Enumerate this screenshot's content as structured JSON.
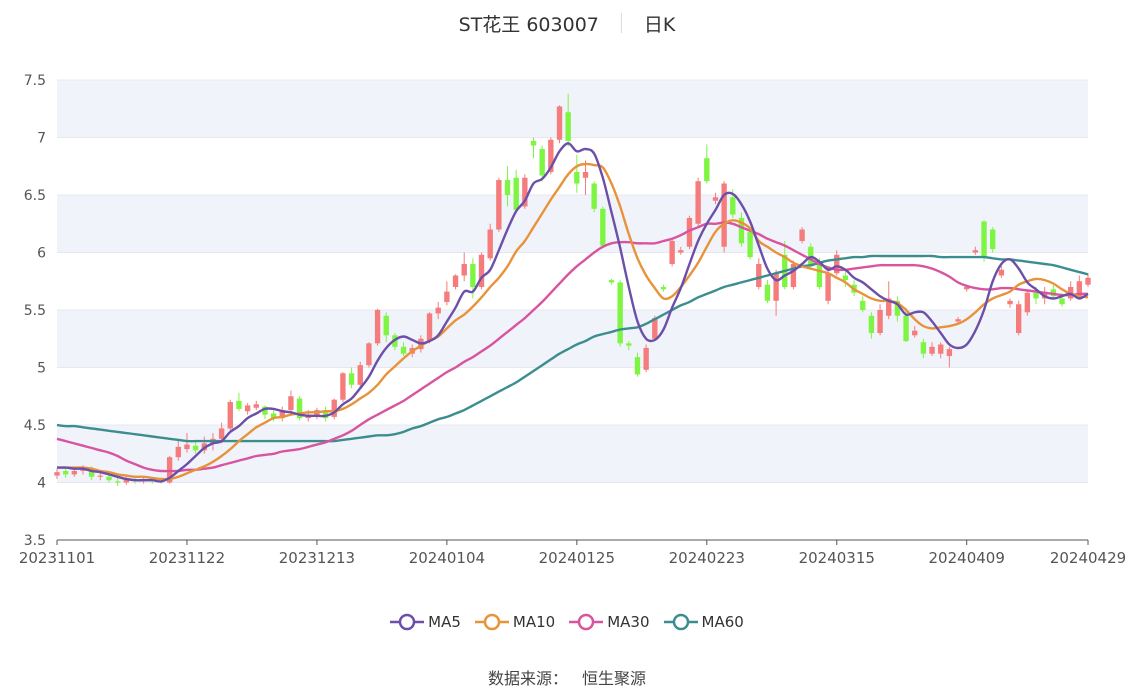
{
  "header": {
    "stock": "ST花王 603007",
    "period": "日K"
  },
  "footer": {
    "source_label": "数据来源：",
    "source_value": "恒生聚源"
  },
  "colors": {
    "up": "#f47c7c",
    "down": "#7ef542",
    "MA5": "#6b4fa8",
    "MA10": "#e8933a",
    "MA30": "#d8549f",
    "MA60": "#3c8d8f",
    "band": "#f1f3fa",
    "grid": "#e6e8f0"
  },
  "chart_data": {
    "type": "candlestick",
    "title": "ST花王 603007 日K",
    "ylim": [
      3.5,
      7.5
    ],
    "y_ticks": [
      "3.5",
      "4",
      "4.5",
      "5",
      "5.5",
      "6",
      "6.5",
      "7",
      "7.5"
    ],
    "x_ticks": [
      {
        "label": "20231101",
        "index": 0
      },
      {
        "label": "20231122",
        "index": 15
      },
      {
        "label": "20231213",
        "index": 30
      },
      {
        "label": "20240104",
        "index": 45
      },
      {
        "label": "20240125",
        "index": 60
      },
      {
        "label": "20240223",
        "index": 75
      },
      {
        "label": "20240315",
        "index": 90
      },
      {
        "label": "20240409",
        "index": 105
      },
      {
        "label": "20240429",
        "index": 119
      }
    ],
    "ohlc": [
      [
        4.06,
        4.09,
        4.03,
        4.12
      ],
      [
        4.1,
        4.07,
        4.04,
        4.13
      ],
      [
        4.07,
        4.1,
        4.05,
        4.12
      ],
      [
        4.1,
        4.12,
        4.07,
        4.15
      ],
      [
        4.12,
        4.05,
        4.02,
        4.14
      ],
      [
        4.05,
        4.06,
        4.02,
        4.08
      ],
      [
        4.05,
        4.02,
        4.0,
        4.07
      ],
      [
        4.01,
        4.0,
        3.97,
        4.05
      ],
      [
        4.0,
        4.03,
        3.98,
        4.05
      ],
      [
        4.03,
        4.01,
        3.99,
        4.06
      ],
      [
        4.01,
        4.02,
        3.99,
        4.04
      ],
      [
        4.02,
        4.01,
        3.99,
        4.03
      ],
      [
        4.01,
        4.0,
        3.99,
        4.03
      ],
      [
        4.0,
        4.22,
        3.99,
        4.23
      ],
      [
        4.22,
        4.31,
        4.19,
        4.38
      ],
      [
        4.29,
        4.33,
        4.26,
        4.43
      ],
      [
        4.32,
        4.28,
        4.25,
        4.36
      ],
      [
        4.28,
        4.34,
        4.25,
        4.4
      ],
      [
        4.34,
        4.38,
        4.28,
        4.43
      ],
      [
        4.38,
        4.47,
        4.34,
        4.52
      ],
      [
        4.47,
        4.7,
        4.45,
        4.72
      ],
      [
        4.71,
        4.64,
        4.62,
        4.78
      ],
      [
        4.62,
        4.67,
        4.59,
        4.69
      ],
      [
        4.65,
        4.68,
        4.63,
        4.71
      ],
      [
        4.66,
        4.59,
        4.55,
        4.67
      ],
      [
        4.6,
        4.56,
        4.53,
        4.63
      ],
      [
        4.56,
        4.63,
        4.53,
        4.66
      ],
      [
        4.63,
        4.75,
        4.61,
        4.8
      ],
      [
        4.73,
        4.56,
        4.54,
        4.75
      ],
      [
        4.56,
        4.59,
        4.53,
        4.63
      ],
      [
        4.58,
        4.63,
        4.55,
        4.65
      ],
      [
        4.62,
        4.56,
        4.53,
        4.66
      ],
      [
        4.57,
        4.72,
        4.55,
        4.73
      ],
      [
        4.72,
        4.95,
        4.7,
        4.96
      ],
      [
        4.95,
        4.85,
        4.82,
        5.0
      ],
      [
        4.85,
        5.02,
        4.83,
        5.05
      ],
      [
        5.02,
        5.21,
        5.0,
        5.22
      ],
      [
        5.21,
        5.5,
        5.19,
        5.51
      ],
      [
        5.45,
        5.28,
        5.22,
        5.48
      ],
      [
        5.28,
        5.18,
        5.15,
        5.3
      ],
      [
        5.18,
        5.12,
        5.1,
        5.22
      ],
      [
        5.12,
        5.17,
        5.09,
        5.2
      ],
      [
        5.16,
        5.25,
        5.13,
        5.28
      ],
      [
        5.23,
        5.47,
        5.21,
        5.48
      ],
      [
        5.47,
        5.52,
        5.42,
        5.57
      ],
      [
        5.57,
        5.66,
        5.54,
        5.75
      ],
      [
        5.7,
        5.8,
        5.68,
        5.81
      ],
      [
        5.8,
        5.9,
        5.75,
        6.0
      ],
      [
        5.9,
        5.7,
        5.6,
        5.95
      ],
      [
        5.7,
        5.98,
        5.68,
        6.0
      ],
      [
        5.95,
        6.2,
        5.93,
        6.25
      ],
      [
        6.2,
        6.63,
        6.18,
        6.65
      ],
      [
        6.63,
        6.5,
        6.4,
        6.75
      ],
      [
        6.65,
        6.37,
        6.35,
        6.72
      ],
      [
        6.4,
        6.65,
        6.38,
        6.68
      ],
      [
        6.97,
        6.93,
        6.82,
        7.0
      ],
      [
        6.9,
        6.67,
        6.62,
        6.93
      ],
      [
        6.7,
        6.98,
        6.68,
        7.0
      ],
      [
        6.98,
        7.27,
        6.95,
        7.28
      ],
      [
        7.22,
        6.97,
        6.92,
        7.38
      ],
      [
        6.7,
        6.6,
        6.52,
        6.85
      ],
      [
        6.65,
        6.7,
        6.5,
        6.8
      ],
      [
        6.6,
        6.38,
        6.35,
        6.62
      ],
      [
        6.38,
        6.06,
        6.04,
        6.4
      ],
      [
        5.76,
        5.74,
        5.72,
        5.77
      ],
      [
        5.74,
        5.21,
        5.18,
        5.76
      ],
      [
        5.21,
        5.19,
        5.15,
        5.23
      ],
      [
        5.09,
        4.94,
        4.92,
        5.13
      ],
      [
        4.98,
        5.17,
        4.96,
        5.2
      ],
      [
        5.25,
        5.43,
        5.24,
        5.45
      ],
      [
        5.7,
        5.68,
        5.66,
        5.72
      ],
      [
        5.9,
        6.1,
        5.88,
        6.12
      ],
      [
        6.0,
        6.02,
        5.98,
        6.05
      ],
      [
        6.05,
        6.3,
        6.03,
        6.32
      ],
      [
        6.25,
        6.62,
        6.22,
        6.65
      ],
      [
        6.82,
        6.62,
        6.6,
        6.94
      ],
      [
        6.45,
        6.48,
        6.42,
        6.52
      ],
      [
        6.05,
        6.6,
        6.0,
        6.62
      ],
      [
        6.48,
        6.33,
        6.3,
        6.55
      ],
      [
        6.3,
        6.08,
        6.05,
        6.35
      ],
      [
        6.18,
        5.96,
        5.94,
        6.22
      ],
      [
        5.7,
        5.9,
        5.68,
        5.95
      ],
      [
        5.72,
        5.58,
        5.56,
        5.76
      ],
      [
        5.58,
        5.82,
        5.45,
        5.85
      ],
      [
        5.98,
        5.7,
        5.68,
        6.1
      ],
      [
        5.7,
        5.9,
        5.68,
        5.93
      ],
      [
        6.1,
        6.2,
        6.08,
        6.22
      ],
      [
        6.05,
        5.88,
        5.85,
        6.08
      ],
      [
        5.92,
        5.7,
        5.68,
        5.95
      ],
      [
        5.58,
        5.82,
        5.55,
        5.85
      ],
      [
        5.82,
        5.98,
        5.8,
        6.02
      ],
      [
        5.8,
        5.76,
        5.7,
        5.86
      ],
      [
        5.72,
        5.65,
        5.62,
        5.76
      ],
      [
        5.58,
        5.5,
        5.48,
        5.62
      ],
      [
        5.45,
        5.3,
        5.25,
        5.48
      ],
      [
        5.3,
        5.5,
        5.28,
        5.55
      ],
      [
        5.45,
        5.6,
        5.42,
        5.75
      ],
      [
        5.58,
        5.45,
        5.4,
        5.62
      ],
      [
        5.45,
        5.23,
        5.22,
        5.52
      ],
      [
        5.28,
        5.32,
        5.26,
        5.36
      ],
      [
        5.22,
        5.12,
        5.08,
        5.25
      ],
      [
        5.12,
        5.18,
        5.1,
        5.22
      ],
      [
        5.12,
        5.2,
        5.08,
        5.22
      ],
      [
        5.1,
        5.16,
        5.0,
        5.18
      ],
      [
        5.4,
        5.42,
        5.38,
        5.44
      ],
      [
        5.68,
        5.7,
        5.66,
        5.72
      ],
      [
        6.0,
        6.02,
        5.98,
        6.05
      ],
      [
        6.27,
        5.96,
        5.92,
        6.28
      ],
      [
        6.2,
        6.03,
        6.0,
        6.22
      ],
      [
        5.8,
        5.85,
        5.78,
        5.88
      ],
      [
        5.55,
        5.58,
        5.52,
        5.6
      ],
      [
        5.3,
        5.55,
        5.28,
        5.58
      ],
      [
        5.48,
        5.65,
        5.45,
        5.68
      ],
      [
        5.65,
        5.6,
        5.55,
        5.7
      ],
      [
        5.6,
        5.66,
        5.55,
        5.7
      ],
      [
        5.68,
        5.62,
        5.6,
        5.72
      ],
      [
        5.6,
        5.55,
        5.53,
        5.65
      ],
      [
        5.6,
        5.7,
        5.58,
        5.75
      ],
      [
        5.62,
        5.75,
        5.6,
        5.8
      ],
      [
        5.72,
        5.78,
        5.7,
        5.82
      ]
    ],
    "series": [
      {
        "name": "MA5",
        "values": [
          4.13,
          4.13,
          4.12,
          4.12,
          4.1,
          4.09,
          4.07,
          4.05,
          4.03,
          4.02,
          4.02,
          4.02,
          4.01,
          4.04,
          4.1,
          4.16,
          4.23,
          4.3,
          4.34,
          4.36,
          4.44,
          4.49,
          4.56,
          4.6,
          4.64,
          4.64,
          4.62,
          4.61,
          4.59,
          4.58,
          4.58,
          4.58,
          4.61,
          4.68,
          4.73,
          4.82,
          4.92,
          5.06,
          5.17,
          5.24,
          5.27,
          5.24,
          5.21,
          5.23,
          5.28,
          5.4,
          5.52,
          5.66,
          5.66,
          5.78,
          5.85,
          6.02,
          6.2,
          6.36,
          6.45,
          6.6,
          6.64,
          6.74,
          6.88,
          6.95,
          6.88,
          6.9,
          6.86,
          6.65,
          6.35,
          6.04,
          5.7,
          5.4,
          5.25,
          5.24,
          5.33,
          5.52,
          5.69,
          5.9,
          6.1,
          6.25,
          6.37,
          6.5,
          6.51,
          6.42,
          6.27,
          6.06,
          5.86,
          5.76,
          5.8,
          5.84,
          5.9,
          5.96,
          5.92,
          5.85,
          5.88,
          5.85,
          5.78,
          5.74,
          5.68,
          5.62,
          5.58,
          5.55,
          5.46,
          5.48,
          5.48,
          5.4,
          5.3,
          5.2,
          5.17,
          5.2,
          5.32,
          5.5,
          5.75,
          5.9,
          5.94,
          5.86,
          5.74,
          5.68,
          5.62,
          5.6,
          5.62,
          5.64,
          5.6,
          5.64
        ]
      },
      {
        "name": "MA10",
        "values": [
          4.13,
          4.13,
          4.13,
          4.13,
          4.12,
          4.1,
          4.09,
          4.07,
          4.06,
          4.05,
          4.05,
          4.04,
          4.03,
          4.03,
          4.05,
          4.08,
          4.11,
          4.14,
          4.18,
          4.23,
          4.29,
          4.36,
          4.42,
          4.48,
          4.52,
          4.56,
          4.57,
          4.59,
          4.6,
          4.61,
          4.61,
          4.62,
          4.62,
          4.64,
          4.68,
          4.73,
          4.78,
          4.85,
          4.94,
          5.01,
          5.08,
          5.14,
          5.19,
          5.23,
          5.27,
          5.34,
          5.41,
          5.46,
          5.53,
          5.61,
          5.7,
          5.78,
          5.88,
          6.01,
          6.1,
          6.22,
          6.34,
          6.46,
          6.57,
          6.68,
          6.75,
          6.77,
          6.76,
          6.74,
          6.6,
          6.4,
          6.16,
          5.95,
          5.8,
          5.69,
          5.6,
          5.62,
          5.7,
          5.8,
          5.91,
          6.05,
          6.18,
          6.25,
          6.28,
          6.26,
          6.21,
          6.1,
          6.05,
          6.0,
          5.96,
          5.91,
          5.88,
          5.86,
          5.84,
          5.82,
          5.78,
          5.74,
          5.68,
          5.64,
          5.6,
          5.58,
          5.58,
          5.56,
          5.5,
          5.42,
          5.36,
          5.34,
          5.35,
          5.36,
          5.38,
          5.42,
          5.48,
          5.55,
          5.6,
          5.63,
          5.66,
          5.72,
          5.75,
          5.77,
          5.76,
          5.73,
          5.68,
          5.64,
          5.62,
          5.61
        ]
      },
      {
        "name": "MA30",
        "values": [
          4.38,
          4.36,
          4.34,
          4.32,
          4.3,
          4.28,
          4.26,
          4.23,
          4.19,
          4.16,
          4.13,
          4.11,
          4.1,
          4.1,
          4.1,
          4.11,
          4.11,
          4.12,
          4.13,
          4.15,
          4.17,
          4.19,
          4.21,
          4.23,
          4.24,
          4.25,
          4.27,
          4.28,
          4.29,
          4.31,
          4.33,
          4.35,
          4.38,
          4.41,
          4.45,
          4.5,
          4.55,
          4.59,
          4.63,
          4.67,
          4.71,
          4.76,
          4.81,
          4.86,
          4.91,
          4.96,
          5.0,
          5.05,
          5.09,
          5.14,
          5.19,
          5.25,
          5.31,
          5.37,
          5.43,
          5.5,
          5.57,
          5.65,
          5.73,
          5.81,
          5.88,
          5.94,
          6.0,
          6.05,
          6.08,
          6.09,
          6.09,
          6.08,
          6.08,
          6.08,
          6.1,
          6.12,
          6.15,
          6.19,
          6.22,
          6.25,
          6.25,
          6.26,
          6.25,
          6.22,
          6.19,
          6.16,
          6.12,
          6.09,
          6.06,
          6.02,
          5.98,
          5.94,
          5.9,
          5.87,
          5.85,
          5.85,
          5.86,
          5.87,
          5.88,
          5.89,
          5.89,
          5.89,
          5.89,
          5.89,
          5.88,
          5.86,
          5.83,
          5.79,
          5.74,
          5.71,
          5.69,
          5.68,
          5.68,
          5.69,
          5.69,
          5.68,
          5.67,
          5.66,
          5.65,
          5.64,
          5.63,
          5.63,
          5.64,
          5.64
        ]
      },
      {
        "name": "MA60",
        "values": [
          4.5,
          4.49,
          4.49,
          4.48,
          4.47,
          4.46,
          4.45,
          4.44,
          4.43,
          4.42,
          4.41,
          4.4,
          4.39,
          4.38,
          4.37,
          4.36,
          4.36,
          4.36,
          4.36,
          4.36,
          4.36,
          4.36,
          4.36,
          4.36,
          4.36,
          4.36,
          4.36,
          4.36,
          4.36,
          4.36,
          4.36,
          4.36,
          4.36,
          4.37,
          4.38,
          4.39,
          4.4,
          4.41,
          4.41,
          4.42,
          4.44,
          4.47,
          4.49,
          4.52,
          4.55,
          4.57,
          4.6,
          4.63,
          4.67,
          4.71,
          4.75,
          4.79,
          4.83,
          4.87,
          4.92,
          4.97,
          5.02,
          5.07,
          5.12,
          5.16,
          5.2,
          5.23,
          5.27,
          5.29,
          5.31,
          5.33,
          5.34,
          5.35,
          5.38,
          5.42,
          5.46,
          5.5,
          5.54,
          5.57,
          5.61,
          5.64,
          5.67,
          5.7,
          5.72,
          5.74,
          5.76,
          5.78,
          5.8,
          5.82,
          5.84,
          5.86,
          5.88,
          5.89,
          5.91,
          5.93,
          5.94,
          5.95,
          5.96,
          5.96,
          5.97,
          5.97,
          5.97,
          5.97,
          5.97,
          5.97,
          5.97,
          5.97,
          5.96,
          5.96,
          5.96,
          5.96,
          5.96,
          5.96,
          5.95,
          5.94,
          5.94,
          5.93,
          5.92,
          5.91,
          5.9,
          5.89,
          5.87,
          5.85,
          5.83,
          5.81
        ]
      }
    ]
  }
}
